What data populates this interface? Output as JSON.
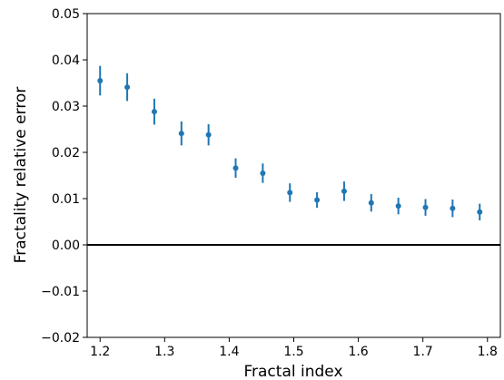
{
  "chart_data": {
    "type": "scatter",
    "xlabel": "Fractal index",
    "ylabel": "Fractality relative error",
    "xlim": [
      1.18,
      1.82
    ],
    "ylim": [
      -0.02,
      0.05
    ],
    "xticks": [
      1.2,
      1.3,
      1.4,
      1.5,
      1.6,
      1.7,
      1.8
    ],
    "xtick_labels": [
      "1.2",
      "1.3",
      "1.4",
      "1.5",
      "1.6",
      "1.7",
      "1.8"
    ],
    "yticks": [
      -0.02,
      -0.01,
      0.0,
      0.01,
      0.02,
      0.03,
      0.04,
      0.05
    ],
    "ytick_labels": [
      "−0.02",
      "−0.01",
      "0.00",
      "0.01",
      "0.02",
      "0.03",
      "0.04",
      "0.05"
    ],
    "reference_line_y": 0.0,
    "grid": false,
    "series": [
      {
        "color": "#1f77b4",
        "marker": "circle",
        "points": [
          {
            "x": 1.2,
            "y": 0.0355,
            "err": 0.0032
          },
          {
            "x": 1.242,
            "y": 0.0341,
            "err": 0.003
          },
          {
            "x": 1.284,
            "y": 0.0288,
            "err": 0.0028
          },
          {
            "x": 1.326,
            "y": 0.0241,
            "err": 0.0026
          },
          {
            "x": 1.368,
            "y": 0.0238,
            "err": 0.0023
          },
          {
            "x": 1.41,
            "y": 0.0166,
            "err": 0.0021
          },
          {
            "x": 1.452,
            "y": 0.0155,
            "err": 0.0021
          },
          {
            "x": 1.494,
            "y": 0.0113,
            "err": 0.002
          },
          {
            "x": 1.536,
            "y": 0.0097,
            "err": 0.0017
          },
          {
            "x": 1.578,
            "y": 0.0116,
            "err": 0.0021
          },
          {
            "x": 1.62,
            "y": 0.0091,
            "err": 0.0019
          },
          {
            "x": 1.662,
            "y": 0.0084,
            "err": 0.0018
          },
          {
            "x": 1.704,
            "y": 0.0081,
            "err": 0.0018
          },
          {
            "x": 1.746,
            "y": 0.0079,
            "err": 0.0019
          },
          {
            "x": 1.788,
            "y": 0.0071,
            "err": 0.0018
          }
        ]
      }
    ]
  }
}
